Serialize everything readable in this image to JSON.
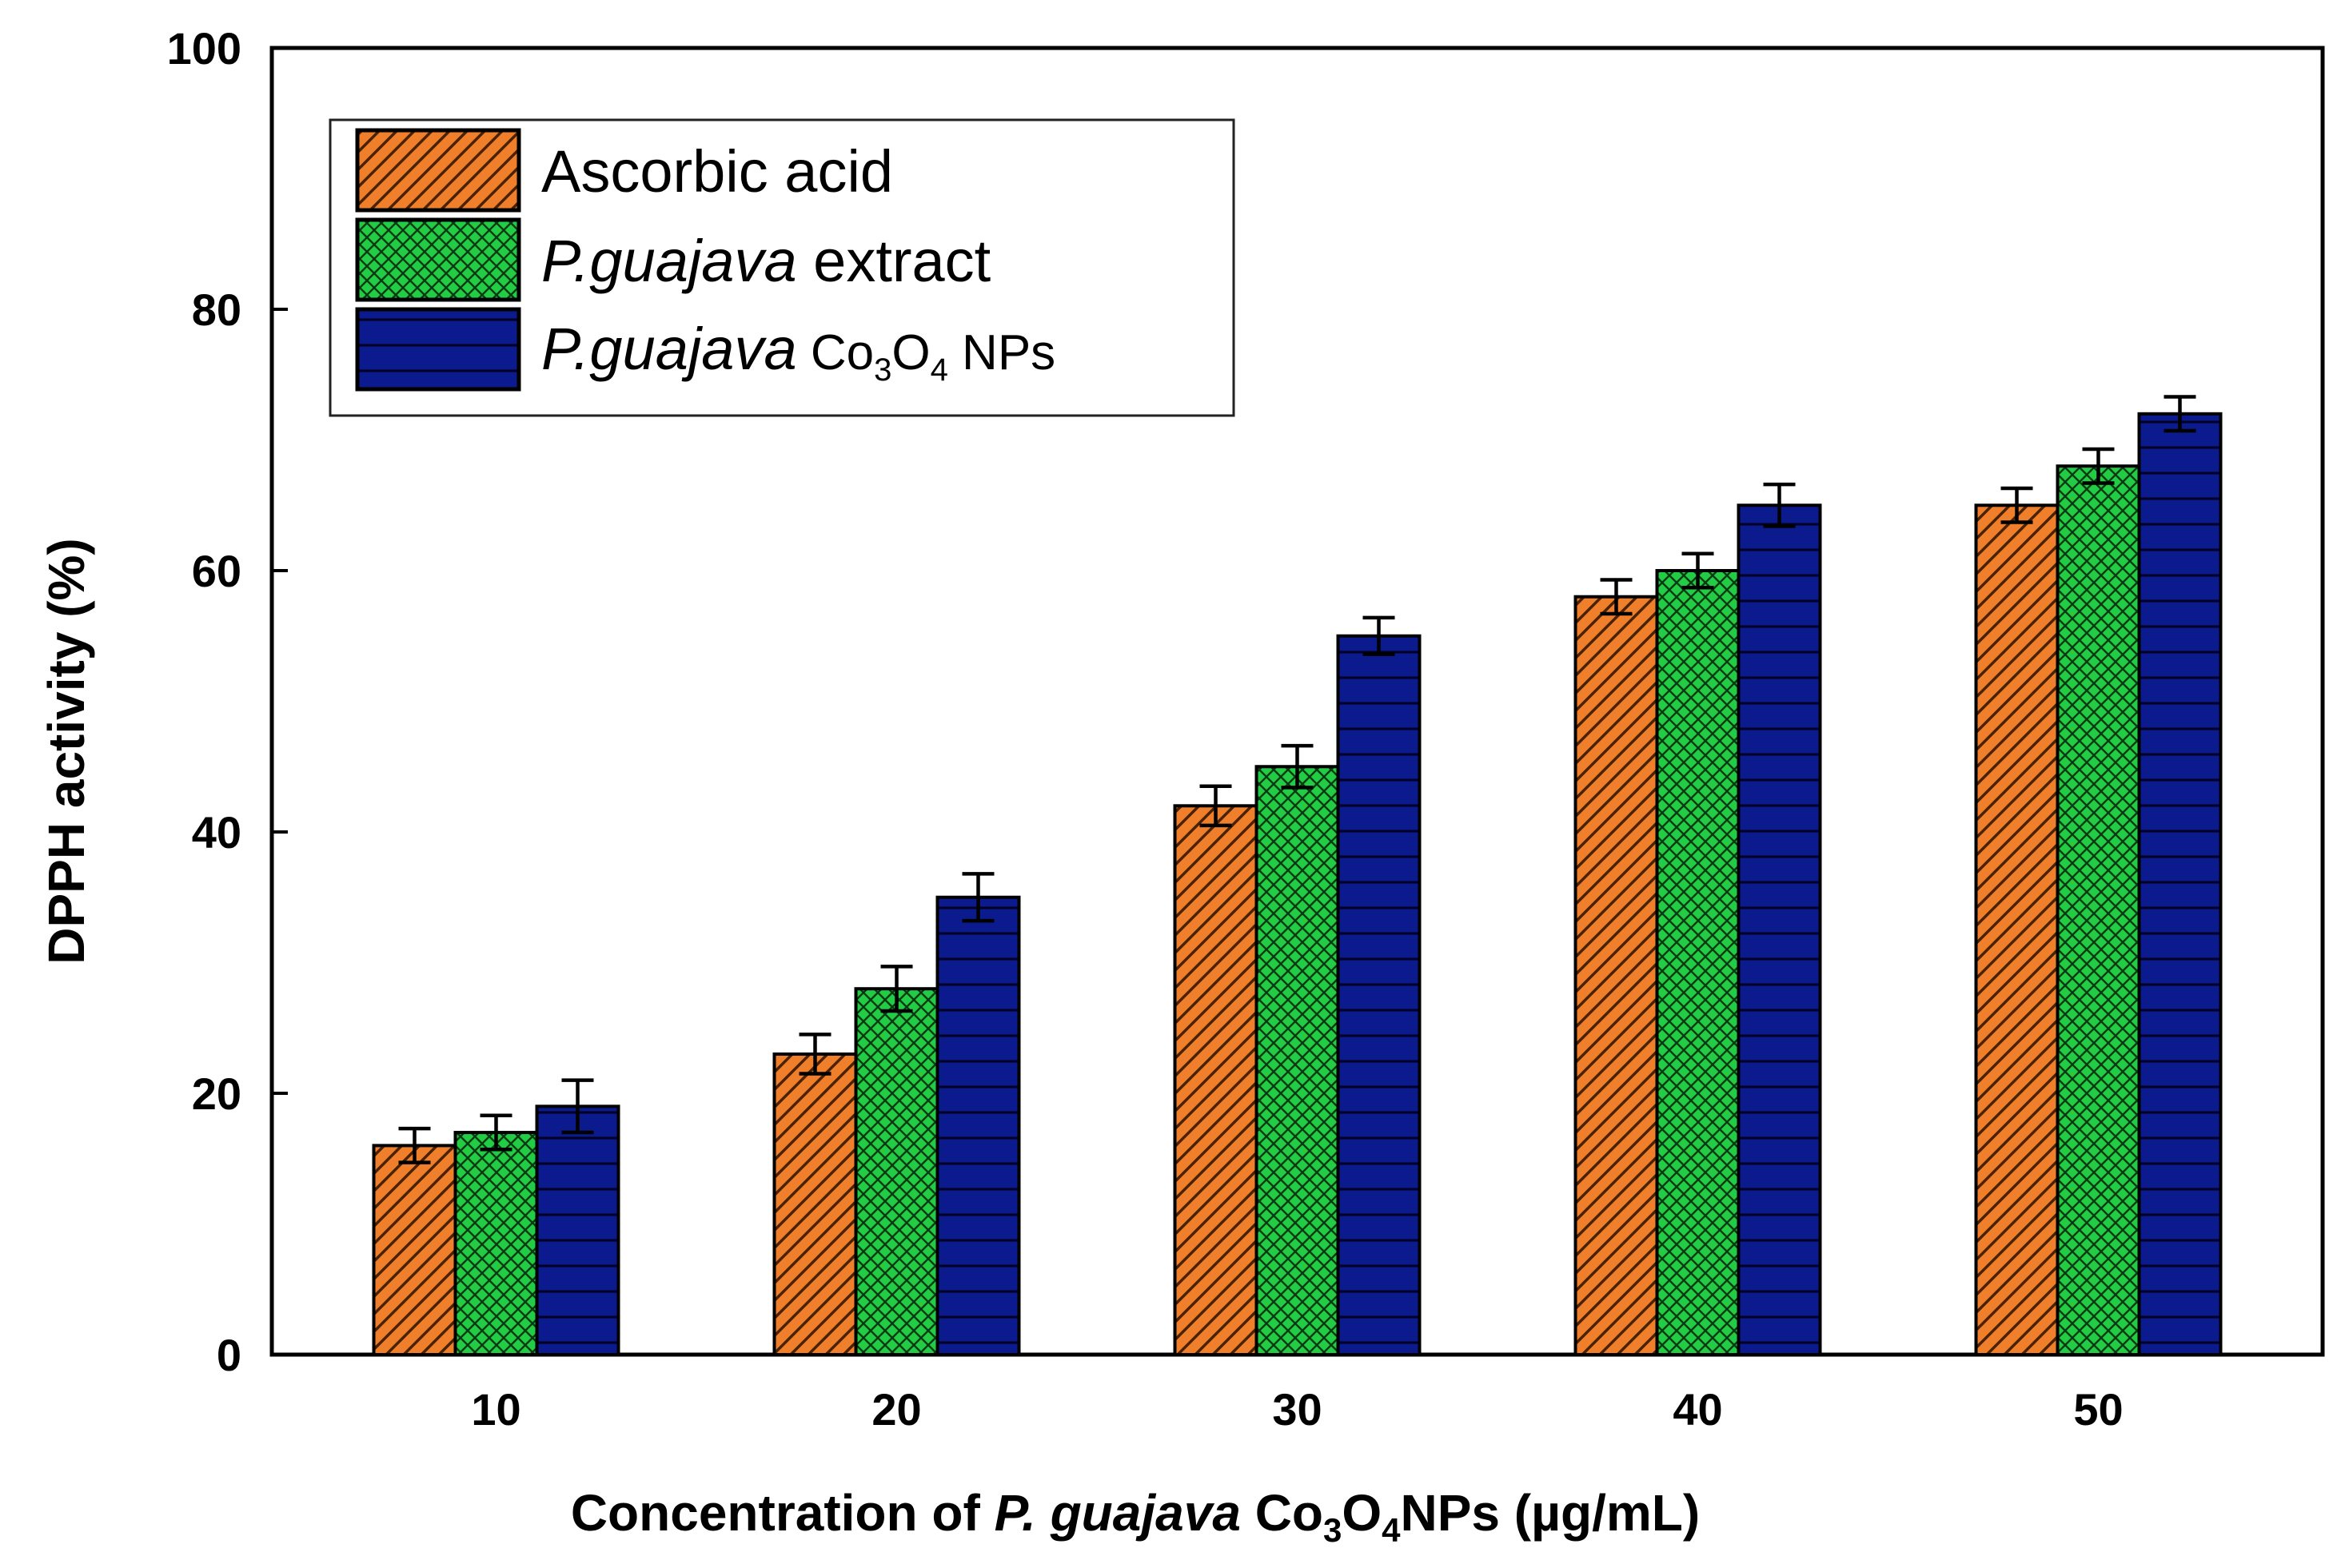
{
  "chart_data": {
    "type": "bar",
    "categories": [
      "10",
      "20",
      "30",
      "40",
      "50"
    ],
    "series": [
      {
        "name": "Ascorbic acid",
        "values": [
          16,
          23,
          42,
          58,
          65
        ],
        "errors": [
          1.3,
          1.5,
          1.5,
          1.3,
          1.3
        ],
        "color": "#f07f2b",
        "pattern": "diagonal-hatch"
      },
      {
        "name": "P.guajava extract",
        "values": [
          17,
          28,
          45,
          60,
          68
        ],
        "errors": [
          1.3,
          1.7,
          1.6,
          1.3,
          1.3
        ],
        "color": "#22cc44",
        "pattern": "cross-hatch"
      },
      {
        "name": "P.guajava Co3O4 NPs",
        "values": [
          19,
          35,
          55,
          65,
          72
        ],
        "errors": [
          2.0,
          1.8,
          1.4,
          1.6,
          1.3
        ],
        "color": "#0b1a8c",
        "pattern": "horizontal-lines"
      }
    ],
    "ylim": [
      0,
      100
    ],
    "yticks": [
      0,
      20,
      40,
      60,
      80,
      100
    ],
    "ylabel": "DPPH activity (%)",
    "xlabel": {
      "part1": "Concentration of ",
      "italic": "P. guajava",
      "part2": " Co",
      "sub1": "3",
      "part3": "O",
      "sub2": "4",
      "part4": "NPs (µg/mL)"
    },
    "legend": {
      "position": "top-left",
      "entries": [
        {
          "italic": "",
          "text": "Ascorbic acid"
        },
        {
          "italic": "P.guajava",
          "text": " extract"
        },
        {
          "italic": "P.guajava",
          "text": " Co",
          "sub1": "3",
          "text2": "O",
          "sub2": "4",
          "text3": " NPs"
        }
      ]
    },
    "grid": false
  }
}
